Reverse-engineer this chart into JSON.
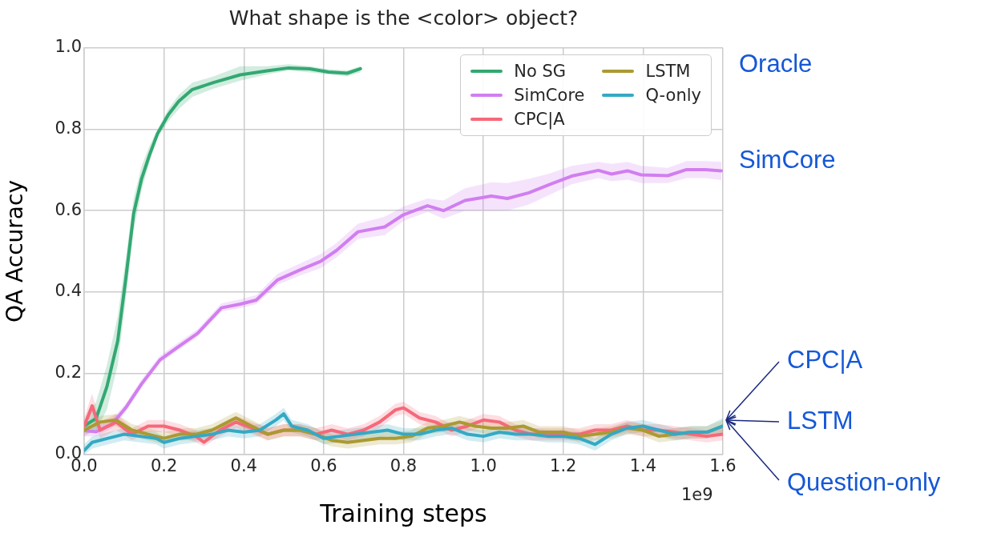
{
  "chart_data": {
    "type": "line",
    "title": "What shape is the <color> object?",
    "xlabel": "Training steps",
    "ylabel": "QA Accuracy",
    "xlim": [
      0,
      1.6
    ],
    "ylim": [
      0,
      1
    ],
    "xticks": [
      {
        "value": 0,
        "label": "0.0"
      },
      0.2,
      0.4,
      0.6,
      0.8,
      {
        "value": 1,
        "label": "1.0"
      },
      1.2,
      1.4,
      1.6
    ],
    "yticks": [
      {
        "value": 0,
        "label": "0.0"
      },
      0.2,
      0.4,
      0.6,
      0.8,
      {
        "value": 1,
        "label": "1.0"
      }
    ],
    "grid": true,
    "legend": "top right",
    "marker": "none",
    "line_style": "solid",
    "annotations": [
      "1e9",
      "Oracle",
      "SimCore",
      "CPC|A",
      "LSTM",
      "Question-only"
    ],
    "series": [
      {
        "name": "No SG",
        "color": "#33a872",
        "x": [
          0.003,
          0.03,
          0.057,
          0.084,
          0.104,
          0.124,
          0.144,
          0.164,
          0.184,
          0.211,
          0.237,
          0.271,
          0.324,
          0.391,
          0.458,
          0.512,
          0.565,
          0.612,
          0.659,
          0.692
        ],
        "values": [
          0.072,
          0.089,
          0.167,
          0.279,
          0.43,
          0.593,
          0.679,
          0.738,
          0.79,
          0.836,
          0.869,
          0.898,
          0.915,
          0.934,
          0.944,
          0.951,
          0.949,
          0.941,
          0.938,
          0.949
        ],
        "lower": [
          0.05,
          0.06,
          0.11,
          0.22,
          0.38,
          0.55,
          0.65,
          0.72,
          0.78,
          0.82,
          0.85,
          0.88,
          0.9,
          0.92,
          0.935,
          0.945,
          0.94,
          0.935,
          0.93,
          0.94
        ],
        "upper": [
          0.09,
          0.13,
          0.22,
          0.34,
          0.48,
          0.63,
          0.71,
          0.76,
          0.8,
          0.85,
          0.885,
          0.915,
          0.93,
          0.955,
          0.955,
          0.96,
          0.955,
          0.948,
          0.945,
          0.955
        ]
      },
      {
        "name": "SimCore",
        "color": "#d17ef0",
        "x": [
          0,
          0.03,
          0.07,
          0.104,
          0.144,
          0.19,
          0.237,
          0.284,
          0.344,
          0.391,
          0.431,
          0.485,
          0.545,
          0.592,
          0.632,
          0.686,
          0.753,
          0.8,
          0.86,
          0.9,
          0.954,
          1.02,
          1.06,
          1.114,
          1.168,
          1.221,
          1.288,
          1.321,
          1.361,
          1.395,
          1.462,
          1.509,
          1.556,
          1.596
        ],
        "values": [
          0.059,
          0.056,
          0.075,
          0.115,
          0.174,
          0.233,
          0.266,
          0.298,
          0.361,
          0.37,
          0.38,
          0.43,
          0.456,
          0.475,
          0.502,
          0.548,
          0.56,
          0.59,
          0.612,
          0.6,
          0.625,
          0.636,
          0.63,
          0.644,
          0.665,
          0.685,
          0.699,
          0.69,
          0.698,
          0.688,
          0.686,
          0.701,
          0.701,
          0.698
        ],
        "lower": [
          0.045,
          0.045,
          0.065,
          0.105,
          0.165,
          0.225,
          0.258,
          0.29,
          0.352,
          0.36,
          0.37,
          0.418,
          0.442,
          0.458,
          0.485,
          0.53,
          0.54,
          0.575,
          0.597,
          0.58,
          0.6,
          0.6,
          0.6,
          0.615,
          0.64,
          0.665,
          0.68,
          0.672,
          0.676,
          0.668,
          0.668,
          0.68,
          0.68,
          0.675
        ],
        "upper": [
          0.075,
          0.07,
          0.088,
          0.125,
          0.185,
          0.243,
          0.276,
          0.308,
          0.372,
          0.382,
          0.392,
          0.445,
          0.472,
          0.493,
          0.52,
          0.568,
          0.585,
          0.61,
          0.63,
          0.625,
          0.655,
          0.67,
          0.668,
          0.678,
          0.692,
          0.71,
          0.72,
          0.715,
          0.72,
          0.71,
          0.705,
          0.722,
          0.722,
          0.72
        ]
      },
      {
        "name": "CPC|A",
        "color": "#f5697a",
        "x": [
          0,
          0.02,
          0.04,
          0.08,
          0.12,
          0.16,
          0.2,
          0.24,
          0.28,
          0.3,
          0.34,
          0.38,
          0.42,
          0.46,
          0.5,
          0.54,
          0.58,
          0.62,
          0.66,
          0.7,
          0.74,
          0.78,
          0.8,
          0.84,
          0.88,
          0.92,
          0.96,
          1.0,
          1.04,
          1.08,
          1.12,
          1.16,
          1.2,
          1.24,
          1.28,
          1.32,
          1.36,
          1.4,
          1.44,
          1.48,
          1.52,
          1.56,
          1.6
        ],
        "values": [
          0.07,
          0.12,
          0.06,
          0.08,
          0.05,
          0.07,
          0.07,
          0.06,
          0.045,
          0.03,
          0.06,
          0.08,
          0.065,
          0.05,
          0.06,
          0.06,
          0.05,
          0.06,
          0.05,
          0.06,
          0.08,
          0.11,
          0.115,
          0.09,
          0.08,
          0.06,
          0.07,
          0.085,
          0.08,
          0.06,
          0.05,
          0.05,
          0.05,
          0.05,
          0.06,
          0.06,
          0.07,
          0.06,
          0.06,
          0.055,
          0.05,
          0.045,
          0.05
        ],
        "lower": [
          0.05,
          0.09,
          0.04,
          0.06,
          0.035,
          0.055,
          0.055,
          0.045,
          0.03,
          0.02,
          0.045,
          0.065,
          0.05,
          0.035,
          0.045,
          0.045,
          0.035,
          0.045,
          0.035,
          0.045,
          0.065,
          0.095,
          0.1,
          0.075,
          0.065,
          0.045,
          0.055,
          0.07,
          0.065,
          0.045,
          0.035,
          0.035,
          0.035,
          0.035,
          0.045,
          0.045,
          0.055,
          0.045,
          0.045,
          0.04,
          0.035,
          0.03,
          0.035
        ],
        "upper": [
          0.09,
          0.15,
          0.08,
          0.1,
          0.065,
          0.085,
          0.085,
          0.075,
          0.06,
          0.045,
          0.075,
          0.095,
          0.08,
          0.065,
          0.075,
          0.075,
          0.065,
          0.075,
          0.065,
          0.075,
          0.095,
          0.125,
          0.13,
          0.105,
          0.095,
          0.075,
          0.085,
          0.1,
          0.095,
          0.075,
          0.065,
          0.065,
          0.065,
          0.065,
          0.075,
          0.075,
          0.085,
          0.075,
          0.075,
          0.07,
          0.065,
          0.06,
          0.065
        ]
      },
      {
        "name": "LSTM",
        "color": "#ab9a31",
        "x": [
          0,
          0.04,
          0.08,
          0.12,
          0.16,
          0.2,
          0.24,
          0.28,
          0.32,
          0.36,
          0.38,
          0.42,
          0.46,
          0.5,
          0.54,
          0.58,
          0.62,
          0.66,
          0.7,
          0.74,
          0.78,
          0.82,
          0.86,
          0.9,
          0.94,
          0.98,
          1.02,
          1.06,
          1.1,
          1.14,
          1.2,
          1.24,
          1.28,
          1.32,
          1.36,
          1.4,
          1.44,
          1.48,
          1.52,
          1.56,
          1.6
        ],
        "values": [
          0.06,
          0.08,
          0.085,
          0.06,
          0.05,
          0.04,
          0.05,
          0.05,
          0.06,
          0.08,
          0.09,
          0.07,
          0.05,
          0.06,
          0.06,
          0.05,
          0.035,
          0.03,
          0.035,
          0.04,
          0.04,
          0.045,
          0.065,
          0.07,
          0.08,
          0.07,
          0.065,
          0.065,
          0.07,
          0.055,
          0.055,
          0.045,
          0.05,
          0.055,
          0.065,
          0.06,
          0.045,
          0.05,
          0.055,
          0.055,
          0.07
        ],
        "lower": [
          0.045,
          0.065,
          0.07,
          0.045,
          0.035,
          0.025,
          0.035,
          0.035,
          0.045,
          0.065,
          0.075,
          0.055,
          0.035,
          0.045,
          0.045,
          0.035,
          0.02,
          0.015,
          0.02,
          0.025,
          0.025,
          0.03,
          0.05,
          0.055,
          0.065,
          0.055,
          0.05,
          0.05,
          0.055,
          0.04,
          0.04,
          0.03,
          0.035,
          0.04,
          0.05,
          0.045,
          0.03,
          0.035,
          0.04,
          0.04,
          0.055
        ],
        "upper": [
          0.075,
          0.095,
          0.1,
          0.075,
          0.065,
          0.055,
          0.065,
          0.065,
          0.075,
          0.095,
          0.105,
          0.085,
          0.065,
          0.075,
          0.075,
          0.065,
          0.05,
          0.045,
          0.05,
          0.055,
          0.055,
          0.06,
          0.08,
          0.085,
          0.095,
          0.085,
          0.08,
          0.08,
          0.085,
          0.07,
          0.07,
          0.06,
          0.065,
          0.07,
          0.08,
          0.075,
          0.06,
          0.065,
          0.07,
          0.07,
          0.085
        ]
      },
      {
        "name": "Q-only",
        "color": "#34a9c4",
        "x": [
          0,
          0.02,
          0.06,
          0.1,
          0.14,
          0.18,
          0.2,
          0.24,
          0.28,
          0.32,
          0.36,
          0.4,
          0.44,
          0.48,
          0.5,
          0.52,
          0.56,
          0.6,
          0.64,
          0.68,
          0.72,
          0.76,
          0.8,
          0.84,
          0.88,
          0.92,
          0.96,
          1.0,
          1.04,
          1.08,
          1.12,
          1.16,
          1.2,
          1.24,
          1.28,
          1.32,
          1.36,
          1.4,
          1.44,
          1.48,
          1.52,
          1.56,
          1.6
        ],
        "values": [
          0.01,
          0.03,
          0.04,
          0.05,
          0.045,
          0.04,
          0.03,
          0.04,
          0.045,
          0.05,
          0.06,
          0.055,
          0.06,
          0.085,
          0.1,
          0.07,
          0.06,
          0.04,
          0.045,
          0.05,
          0.055,
          0.06,
          0.05,
          0.05,
          0.06,
          0.065,
          0.05,
          0.045,
          0.055,
          0.05,
          0.05,
          0.045,
          0.045,
          0.04,
          0.025,
          0.05,
          0.065,
          0.07,
          0.06,
          0.05,
          0.055,
          0.055,
          0.07
        ],
        "lower": [
          0,
          0.015,
          0.025,
          0.035,
          0.03,
          0.025,
          0.015,
          0.025,
          0.03,
          0.035,
          0.045,
          0.04,
          0.045,
          0.07,
          0.085,
          0.055,
          0.045,
          0.025,
          0.03,
          0.035,
          0.04,
          0.045,
          0.035,
          0.035,
          0.045,
          0.05,
          0.035,
          0.03,
          0.04,
          0.035,
          0.035,
          0.03,
          0.03,
          0.025,
          0.01,
          0.035,
          0.05,
          0.055,
          0.045,
          0.035,
          0.04,
          0.04,
          0.05
        ],
        "upper": [
          0.025,
          0.045,
          0.055,
          0.065,
          0.06,
          0.055,
          0.045,
          0.055,
          0.06,
          0.065,
          0.075,
          0.07,
          0.075,
          0.1,
          0.115,
          0.085,
          0.075,
          0.055,
          0.06,
          0.065,
          0.07,
          0.075,
          0.065,
          0.065,
          0.075,
          0.08,
          0.065,
          0.06,
          0.07,
          0.065,
          0.065,
          0.06,
          0.06,
          0.055,
          0.04,
          0.065,
          0.08,
          0.085,
          0.075,
          0.065,
          0.07,
          0.07,
          0.09
        ]
      }
    ]
  }
}
